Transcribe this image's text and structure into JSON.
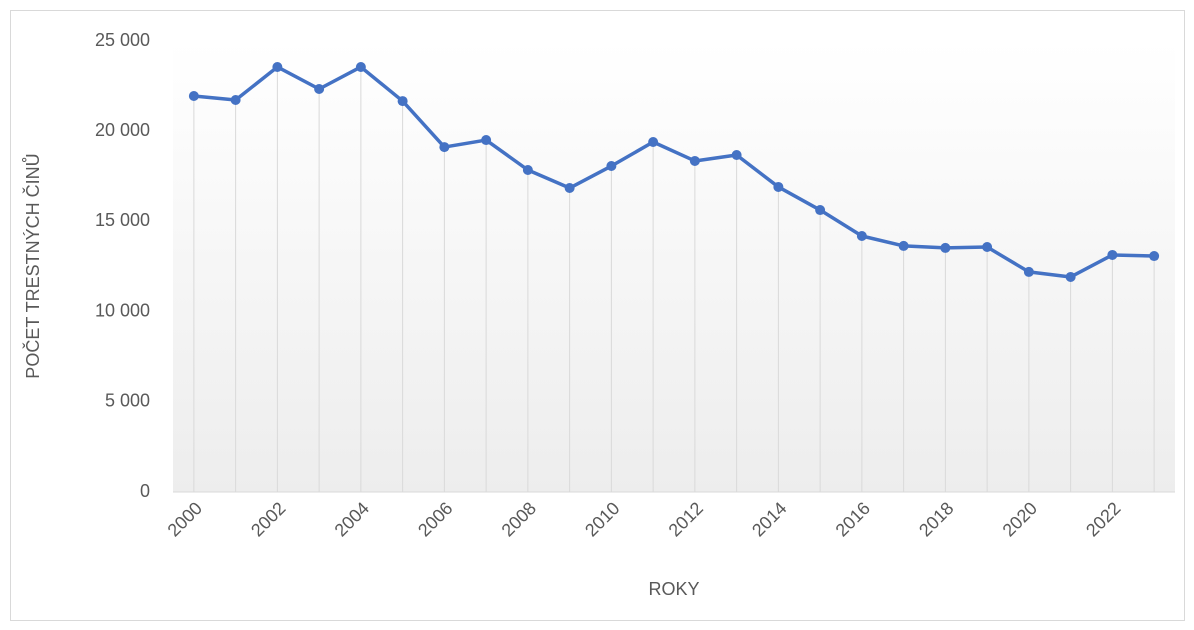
{
  "chart_data": {
    "type": "line",
    "categories": [
      "2000",
      null,
      "2002",
      null,
      "2004",
      null,
      "2006",
      null,
      "2008",
      null,
      "2010",
      null,
      "2012",
      null,
      "2014",
      null,
      "2016",
      null,
      "2018",
      null,
      "2020",
      null,
      "2022",
      null
    ],
    "series": [
      {
        "name": "Počet trestných činů",
        "color": "#4472c4",
        "values": [
          21950,
          21730,
          23560,
          22340,
          23560,
          21670,
          19120,
          19510,
          17850,
          16850,
          18070,
          19400,
          18350,
          18680,
          16910,
          15630,
          14190,
          13640,
          13530,
          13580,
          12200,
          11920,
          13140,
          13080
        ]
      }
    ],
    "ylim": [
      0,
      25000
    ],
    "yticks": [
      {
        "value": 0,
        "label": "0"
      },
      {
        "value": 5000,
        "label": "5 000"
      },
      {
        "value": 10000,
        "label": "10 000"
      },
      {
        "value": 15000,
        "label": "15 000"
      },
      {
        "value": 20000,
        "label": "20 000"
      },
      {
        "value": 25000,
        "label": "25 000"
      }
    ],
    "xlabel": "ROKY",
    "ylabel": "POČET TRESTNÝCH ČINŮ",
    "drop_lines": true
  }
}
